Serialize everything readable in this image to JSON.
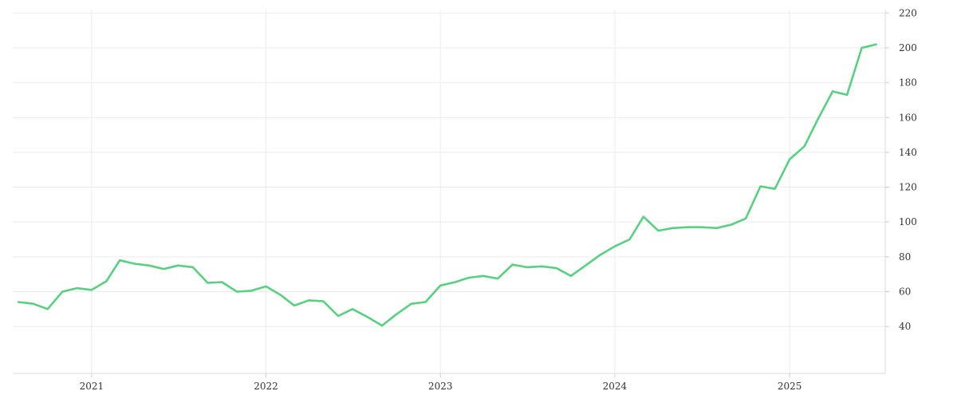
{
  "chart_data": {
    "type": "line",
    "title": "",
    "xlabel": "",
    "ylabel": "",
    "x_ticks": [
      "2021",
      "2022",
      "2023",
      "2024",
      "2025"
    ],
    "y_ticks": [
      40,
      60,
      80,
      100,
      120,
      140,
      160,
      180,
      200,
      220
    ],
    "xlim": [
      "2020-07-20",
      "2025-07-20"
    ],
    "ylim": [
      13,
      222
    ],
    "y_axis_position": "right",
    "grid": true,
    "legend": "none",
    "series": [
      {
        "color": "#56d17f",
        "x": [
          "2020-08-01",
          "2020-09-01",
          "2020-10-01",
          "2020-11-01",
          "2020-12-01",
          "2021-01-01",
          "2021-02-01",
          "2021-03-01",
          "2021-04-01",
          "2021-05-01",
          "2021-06-01",
          "2021-07-01",
          "2021-08-01",
          "2021-09-01",
          "2021-10-01",
          "2021-11-01",
          "2021-12-01",
          "2022-01-01",
          "2022-02-01",
          "2022-03-01",
          "2022-04-01",
          "2022-05-01",
          "2022-06-01",
          "2022-07-01",
          "2022-08-01",
          "2022-09-01",
          "2022-10-01",
          "2022-11-01",
          "2022-12-01",
          "2023-01-01",
          "2023-02-01",
          "2023-03-01",
          "2023-04-01",
          "2023-05-01",
          "2023-06-01",
          "2023-07-01",
          "2023-08-01",
          "2023-09-01",
          "2023-10-01",
          "2023-11-01",
          "2023-12-01",
          "2024-01-01",
          "2024-02-01",
          "2024-03-01",
          "2024-04-01",
          "2024-05-01",
          "2024-06-01",
          "2024-07-01",
          "2024-08-01",
          "2024-09-01",
          "2024-10-01",
          "2024-11-01",
          "2024-12-01",
          "2025-01-01",
          "2025-02-01",
          "2025-03-01",
          "2025-04-01",
          "2025-05-01",
          "2025-06-01",
          "2025-07-01"
        ],
        "values": [
          54,
          53,
          50,
          60,
          62,
          61,
          66,
          78,
          76,
          75,
          73,
          75,
          74,
          65,
          65.5,
          60,
          60.5,
          63,
          58,
          52,
          55,
          54.5,
          46,
          50,
          45.5,
          40.5,
          47,
          53,
          54,
          63.5,
          65.5,
          68,
          69,
          67.5,
          75.5,
          74,
          74.5,
          73.5,
          69,
          75,
          81,
          86,
          90,
          103,
          95,
          96.5,
          97,
          97,
          96.5,
          98.5,
          102,
          120.5,
          119,
          136,
          143.5,
          159,
          175,
          173,
          200,
          202
        ]
      }
    ]
  }
}
